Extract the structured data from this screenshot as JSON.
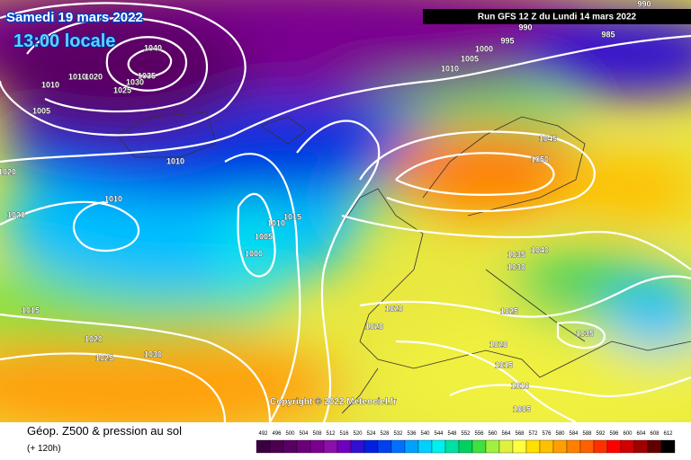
{
  "header": {
    "date": "Samedi 19 mars 2022",
    "time": "13:00 locale",
    "run": "Run GFS 12 Z du Lundi 14 mars 2022"
  },
  "map": {
    "isobar_labels": [
      "990",
      "990",
      "985",
      "995",
      "1000",
      "1005",
      "1010",
      "1040",
      "1035",
      "1030",
      "1025",
      "1010",
      "1010",
      "1020",
      "1005",
      "1010",
      "1020",
      "1010",
      "1020",
      "1015",
      "1010",
      "1005",
      "1000",
      "1045",
      "1050",
      "1040",
      "1035",
      "1030",
      "1025",
      "1020",
      "1020",
      "1015",
      "1020",
      "1025",
      "1030",
      "1020",
      "1015",
      "1010",
      "1005",
      "1035"
    ],
    "copyright": "Copyright © 2022 Meteociel.fr"
  },
  "footer": {
    "title": "Géop. Z500 & pression au sol",
    "lead": "(+ 120h)",
    "scale": {
      "values": [
        492,
        496,
        500,
        504,
        508,
        512,
        516,
        520,
        524,
        528,
        532,
        536,
        540,
        544,
        548,
        552,
        556,
        560,
        564,
        568,
        572,
        576,
        580,
        584,
        588,
        592,
        596,
        600,
        604,
        608,
        612
      ],
      "colors": [
        "#3a0040",
        "#4b0050",
        "#5a0064",
        "#6a0078",
        "#7a0090",
        "#8a10a8",
        "#7000c0",
        "#3010d0",
        "#0020e0",
        "#0040f0",
        "#0070ff",
        "#00a0ff",
        "#00d0ff",
        "#00f0f0",
        "#00e0a0",
        "#00d060",
        "#40e040",
        "#a0f040",
        "#e0f040",
        "#ffff40",
        "#ffe000",
        "#ffc000",
        "#ffa000",
        "#ff8000",
        "#ff6000",
        "#ff3000",
        "#ff0000",
        "#d00000",
        "#a00000",
        "#600000",
        "#000000"
      ]
    }
  }
}
